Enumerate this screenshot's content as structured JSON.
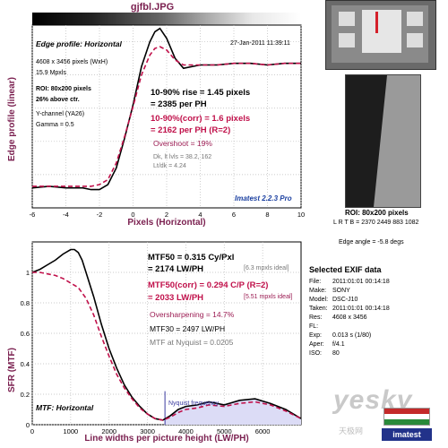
{
  "header": {
    "file_title": "gjfbl.JPG"
  },
  "edge_panel": {
    "heading": "Edge profile: Horizontal",
    "date": "27-Jan-2011 11:39:11",
    "pixels": "4608 x 3456 pixels (WxH)",
    "mpxls": "15.9 Mpxls",
    "roi": "ROI: 80x200 pixels",
    "above": "26% above ctr.",
    "channel": "Y-channel  (YA26)",
    "gamma": "Gamma = 0.5",
    "rise": "10-90% rise = 1.45 pixels",
    "rise_ph": "= 2385 per PH",
    "rise_corr": "10-90%(corr) = 1.6 pixels",
    "rise_corr_ph": "= 2162 per PH   (R=2)",
    "overshoot": "Overshoot = 19%",
    "dk_lt": "Dk, lt lvls = 38.2, 162",
    "lt_dk": "Lt/dk = 4.24",
    "version": "Imatest 2.2.3 Pro"
  },
  "mtf_panel": {
    "mtf50": "MTF50 = 0.315 Cy/Pxl",
    "mtf50_lw": "= 2174 LW/PH",
    "ideal1": "[6.3 mpxls ideal]",
    "mtf50_corr": "MTF50(corr) = 0.294 C/P   (R=2)",
    "mtf50_corr_lw": "= 2033 LW/PH",
    "ideal2": "[5.51 mpxls ideal]",
    "oversharp": "Oversharpening = 14.7%",
    "mtf30": "MTF30 = 2497 LW/PH",
    "nyq_val": "MTF at Nyquist = 0.0205",
    "nyq_label": "Nyquist frequency",
    "heading": "MTF: Horizontal"
  },
  "side_panel": {
    "roi_title": "ROI: 80x200 pixels",
    "roi_coords": "L R T B = 2370 2449  883 1082",
    "edge_angle": "Edge angle = -5.8 degs",
    "exif_title": "Selected EXIF data",
    "exif": [
      {
        "k": "File:",
        "v": "2011:01:01 00:14:18"
      },
      {
        "k": "Make:",
        "v": "SONY"
      },
      {
        "k": "Model:",
        "v": "DSC-J10"
      },
      {
        "k": "Taken:",
        "v": "2011:01:01 00:14:18"
      },
      {
        "k": "Res:",
        "v": "4608 x 3456"
      },
      {
        "k": "FL:",
        "v": ""
      },
      {
        "k": "Exp:",
        "v": "0.013 s  (1/80)"
      },
      {
        "k": "Aper:",
        "v": "f/4.1"
      },
      {
        "k": "ISO:",
        "v": "80"
      }
    ],
    "logo": "imatest",
    "watermark": "yesky",
    "watermark_sub": "天极网"
  },
  "chart_data": [
    {
      "type": "line",
      "xlabel": "Pixels (Horizontal)",
      "ylabel": "Edge profile (linear)",
      "xlim": [
        -6,
        10
      ],
      "ylim": [
        0,
        1.1
      ],
      "xticks": [
        -6,
        -4,
        -2,
        0,
        2,
        4,
        6,
        8,
        10
      ],
      "grid": true,
      "series": [
        {
          "color": "#000000",
          "style": "solid",
          "x": [
            -6,
            -5,
            -4,
            -3,
            -2.5,
            -2,
            -1.5,
            -1,
            -0.5,
            0,
            0.5,
            1,
            1.3,
            1.6,
            2,
            2.5,
            3,
            3.5,
            4,
            5,
            6,
            7,
            8,
            9,
            10
          ],
          "y": [
            0.12,
            0.13,
            0.12,
            0.12,
            0.11,
            0.11,
            0.14,
            0.24,
            0.42,
            0.62,
            0.85,
            1.0,
            1.06,
            1.08,
            1.02,
            0.9,
            0.84,
            0.85,
            0.86,
            0.86,
            0.87,
            0.87,
            0.86,
            0.87,
            0.87
          ]
        },
        {
          "color": "#c0104a",
          "style": "dashed",
          "x": [
            -6,
            -5,
            -4,
            -3,
            -2.5,
            -2,
            -1.5,
            -1,
            -0.5,
            0,
            0.5,
            1,
            1.3,
            1.6,
            2,
            2.5,
            3,
            3.5,
            4,
            5,
            6,
            7,
            8,
            9,
            10
          ],
          "y": [
            0.13,
            0.13,
            0.13,
            0.13,
            0.13,
            0.14,
            0.17,
            0.27,
            0.43,
            0.61,
            0.8,
            0.92,
            0.96,
            0.97,
            0.95,
            0.89,
            0.86,
            0.86,
            0.86,
            0.86,
            0.87,
            0.87,
            0.86,
            0.87,
            0.87
          ]
        }
      ]
    },
    {
      "type": "line",
      "xlabel": "Line widths per picture height (LW/PH)",
      "ylabel": "SFR (MTF)",
      "xlim": [
        0,
        7000
      ],
      "ylim": [
        0,
        1.2
      ],
      "xticks": [
        0,
        1000,
        2000,
        3000,
        4000,
        5000,
        6000
      ],
      "yticks": [
        0,
        0.2,
        0.4,
        0.6,
        0.8,
        1
      ],
      "grid": true,
      "nyquist_x": 3456,
      "series": [
        {
          "color": "#000000",
          "style": "solid",
          "x": [
            0,
            200,
            400,
            600,
            800,
            1000,
            1100,
            1200,
            1300,
            1400,
            1600,
            1800,
            2000,
            2200,
            2400,
            2600,
            2800,
            3000,
            3200,
            3400,
            3600,
            3800,
            4000,
            4300,
            4600,
            5000,
            5400,
            5800,
            6200,
            6600,
            7000
          ],
          "y": [
            1,
            1.02,
            1.05,
            1.08,
            1.12,
            1.15,
            1.15,
            1.13,
            1.08,
            1.0,
            0.84,
            0.66,
            0.5,
            0.37,
            0.26,
            0.18,
            0.12,
            0.07,
            0.04,
            0.03,
            0.06,
            0.1,
            0.12,
            0.13,
            0.15,
            0.13,
            0.16,
            0.17,
            0.14,
            0.1,
            0.04
          ]
        },
        {
          "color": "#c0104a",
          "style": "dashed",
          "x": [
            0,
            200,
            400,
            600,
            800,
            1000,
            1200,
            1400,
            1600,
            1800,
            2000,
            2200,
            2400,
            2600,
            2800,
            3000,
            3200,
            3400,
            3600,
            3800,
            4000,
            4300,
            4600,
            5000,
            5400,
            5800,
            6200,
            6600,
            7000
          ],
          "y": [
            1,
            1.0,
            0.99,
            0.98,
            0.96,
            0.93,
            0.9,
            0.83,
            0.72,
            0.58,
            0.45,
            0.33,
            0.24,
            0.17,
            0.11,
            0.07,
            0.04,
            0.03,
            0.05,
            0.08,
            0.1,
            0.11,
            0.13,
            0.12,
            0.14,
            0.15,
            0.13,
            0.09,
            0.04
          ]
        }
      ]
    }
  ]
}
